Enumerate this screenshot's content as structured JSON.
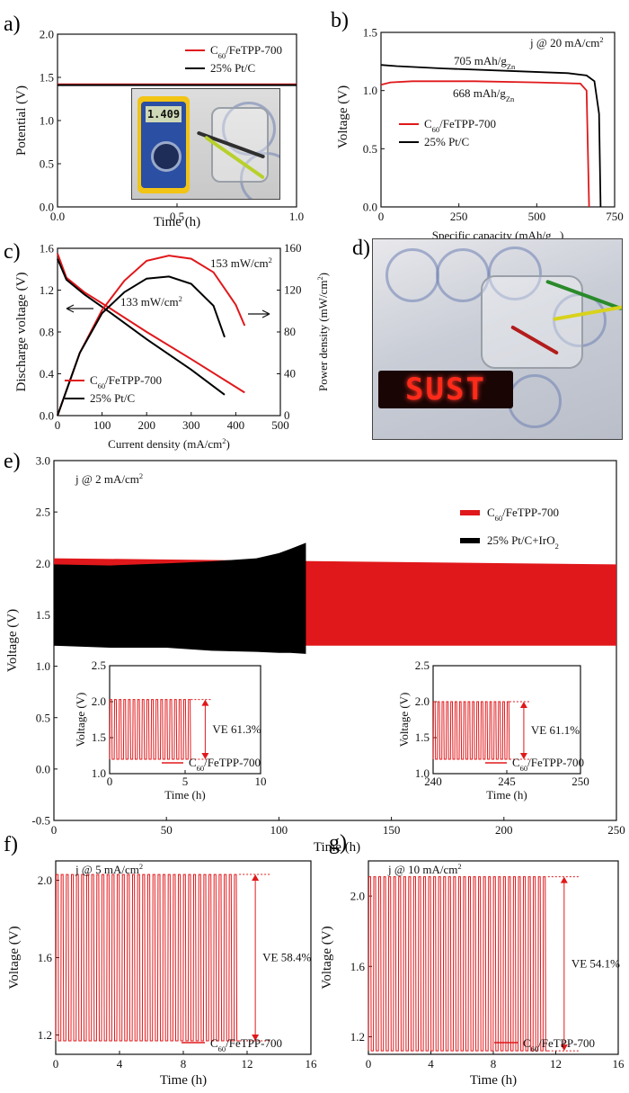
{
  "panel_labels": {
    "a": "a)",
    "b": "b)",
    "c": "c)",
    "d": "d)",
    "e": "e)",
    "f": "f)",
    "g": "g)"
  },
  "colors": {
    "red": "#e0181b",
    "black": "#000000"
  },
  "photos": {
    "a": {
      "multimeter_reading": "1.409"
    },
    "d": {
      "led_text": "SUST"
    }
  },
  "chart_data": [
    {
      "id": "a",
      "type": "line",
      "xlabel": "Time (h)",
      "ylabel": "Potential (V)",
      "xlim": [
        0,
        1
      ],
      "ylim": [
        0,
        2
      ],
      "xticks": [
        "0.0",
        "0.5",
        "1.0"
      ],
      "yticks": [
        "0.0",
        "0.5",
        "1.0",
        "1.5",
        "2.0"
      ],
      "legend": [
        "C60/FeTPP-700",
        "25% Pt/C"
      ],
      "series": [
        {
          "name": "C60/FeTPP-700",
          "color": "#e0181b",
          "x": [
            0,
            1
          ],
          "y": [
            1.42,
            1.42
          ]
        },
        {
          "name": "25% Pt/C",
          "color": "#000000",
          "x": [
            0,
            1
          ],
          "y": [
            1.41,
            1.41
          ]
        }
      ]
    },
    {
      "id": "b",
      "type": "line",
      "xlabel": "Specific capacity (mAh/gZn)",
      "ylabel": "Voltage (V)",
      "xlim": [
        0,
        750
      ],
      "ylim": [
        0,
        1.5
      ],
      "xticks": [
        "0",
        "250",
        "500",
        "750"
      ],
      "yticks": [
        "0.0",
        "0.5",
        "1.0",
        "1.5"
      ],
      "annotation": "j @ 20 mA/cm²",
      "labels": [
        "705 mAh/gZn",
        "668 mAh/gZn"
      ],
      "legend": [
        "C60/FeTPP-700",
        "25% Pt/C"
      ],
      "series": [
        {
          "name": "C60/FeTPP-700",
          "color": "#e0181b",
          "x": [
            0,
            30,
            100,
            300,
            500,
            640,
            660,
            668
          ],
          "y": [
            1.05,
            1.07,
            1.08,
            1.08,
            1.07,
            1.06,
            1.0,
            0
          ]
        },
        {
          "name": "25% Pt/C",
          "color": "#000000",
          "x": [
            0,
            50,
            200,
            400,
            600,
            660,
            685,
            700,
            705
          ],
          "y": [
            1.22,
            1.21,
            1.19,
            1.17,
            1.15,
            1.13,
            1.08,
            0.8,
            0
          ]
        }
      ]
    },
    {
      "id": "c",
      "type": "line",
      "xlabel": "Current density (mA/cm²)",
      "ylabel": "Discharge voltage (V)",
      "y2label": "Power density (mW/cm²)",
      "xlim": [
        0,
        500
      ],
      "ylim": [
        0,
        1.6
      ],
      "y2lim": [
        0,
        160
      ],
      "xticks": [
        "0",
        "100",
        "200",
        "300",
        "400",
        "500"
      ],
      "yticks": [
        "0.0",
        "0.4",
        "0.8",
        "1.2",
        "1.6"
      ],
      "y2ticks": [
        "0",
        "40",
        "80",
        "120",
        "160"
      ],
      "labels": [
        "153 mW/cm²",
        "133 mW/cm²"
      ],
      "legend": [
        "C60/FeTPP-700",
        "25% Pt/C"
      ],
      "series": [
        {
          "name": "C60/FeTPP-700 voltage",
          "color": "#e0181b",
          "axis": "left",
          "x": [
            0,
            20,
            60,
            120,
            200,
            300,
            420
          ],
          "y": [
            1.55,
            1.32,
            1.18,
            1.02,
            0.8,
            0.54,
            0.22
          ]
        },
        {
          "name": "25% Pt/C voltage",
          "color": "#000000",
          "axis": "left",
          "x": [
            0,
            20,
            60,
            120,
            200,
            300,
            375
          ],
          "y": [
            1.5,
            1.3,
            1.16,
            0.98,
            0.73,
            0.44,
            0.2
          ]
        },
        {
          "name": "C60/FeTPP-700 power",
          "color": "#e0181b",
          "axis": "right",
          "x": [
            0,
            50,
            100,
            150,
            200,
            250,
            300,
            350,
            400,
            420
          ],
          "y": [
            0,
            60,
            101,
            129,
            148,
            153,
            150,
            137,
            106,
            86
          ]
        },
        {
          "name": "25% Pt/C power",
          "color": "#000000",
          "axis": "right",
          "x": [
            0,
            50,
            100,
            150,
            200,
            250,
            300,
            350,
            375
          ],
          "y": [
            0,
            60,
            98,
            118,
            131,
            133,
            126,
            105,
            75
          ]
        }
      ]
    },
    {
      "id": "e",
      "type": "area",
      "xlabel": "Time (h)",
      "ylabel": "Voltage (V)",
      "xlim": [
        0,
        250
      ],
      "ylim": [
        -0.5,
        3.0
      ],
      "xticks": [
        "0",
        "50",
        "100",
        "150",
        "200",
        "250"
      ],
      "yticks": [
        "-0.5",
        "0.0",
        "0.5",
        "1.0",
        "1.5",
        "2.0",
        "2.5",
        "3.0"
      ],
      "annotation": "j @ 2 mA/cm²",
      "legend": [
        "C60/FeTPP-700",
        "25% Pt/C+IrO2"
      ],
      "series": [
        {
          "name": "C60/FeTPP-700",
          "color": "#e0181b",
          "x": [
            0,
            250
          ],
          "upper": [
            2.05,
            1.99
          ],
          "lower": [
            1.2,
            1.2
          ]
        },
        {
          "name": "25% Pt/C+IrO2",
          "color": "#000000",
          "x": [
            0,
            25,
            50,
            70,
            90,
            100,
            105,
            112
          ],
          "upper": [
            1.99,
            1.98,
            2.0,
            2.02,
            2.05,
            2.1,
            2.14,
            2.2
          ],
          "lower": [
            1.2,
            1.18,
            1.18,
            1.15,
            1.14,
            1.13,
            1.13,
            1.12
          ]
        }
      ],
      "insets": [
        {
          "xlim": [
            0,
            10
          ],
          "ylim": [
            1.0,
            2.5
          ],
          "xticks": [
            "0",
            "5",
            "10"
          ],
          "yticks": [
            "1.0",
            "1.5",
            "2.0",
            "2.5"
          ],
          "xlabel": "Time (h)",
          "ylabel": "Voltage (V)",
          "cycles": [
            0,
            5.5,
            18
          ],
          "high": 2.03,
          "low": 1.2,
          "ve": "VE 61.3%",
          "legend": "C60/FeTPP-700"
        },
        {
          "xlim": [
            240,
            250
          ],
          "ylim": [
            1.0,
            2.5
          ],
          "xticks": [
            "240",
            "245",
            "250"
          ],
          "yticks": [
            "1.0",
            "1.5",
            "2.0",
            "2.5"
          ],
          "xlabel": "Time (h)",
          "ylabel": "Voltage (V)",
          "cycles": [
            240,
            245.3,
            18
          ],
          "high": 2.0,
          "low": 1.2,
          "ve": "VE 61.1%",
          "legend": "C60/FeTPP-700"
        }
      ]
    },
    {
      "id": "f",
      "type": "line",
      "xlabel": "Time (h)",
      "ylabel": "Voltage (V)",
      "xlim": [
        0,
        16
      ],
      "ylim": [
        1.1,
        2.1
      ],
      "xticks": [
        "0",
        "4",
        "8",
        "12",
        "16"
      ],
      "yticks": [
        "1.2",
        "1.6",
        "2.0"
      ],
      "annotation": "j @ 5 mA/cm²",
      "ve": "VE 58.4%",
      "legend": "C60/FeTPP-700",
      "cycles": [
        0,
        11.5,
        36
      ],
      "high": 2.03,
      "low": 1.17
    },
    {
      "id": "g",
      "type": "line",
      "xlabel": "Time (h)",
      "ylabel": "Voltage (V)",
      "xlim": [
        0,
        16
      ],
      "ylim": [
        1.1,
        2.2
      ],
      "xticks": [
        "0",
        "4",
        "8",
        "12",
        "16"
      ],
      "yticks": [
        "1.2",
        "1.6",
        "2.0"
      ],
      "annotation": "j @ 10 mA/cm²",
      "ve": "VE 54.1%",
      "legend": "C60/FeTPP-700",
      "cycles": [
        0,
        11.5,
        36
      ],
      "high": 2.11,
      "low": 1.12
    }
  ]
}
